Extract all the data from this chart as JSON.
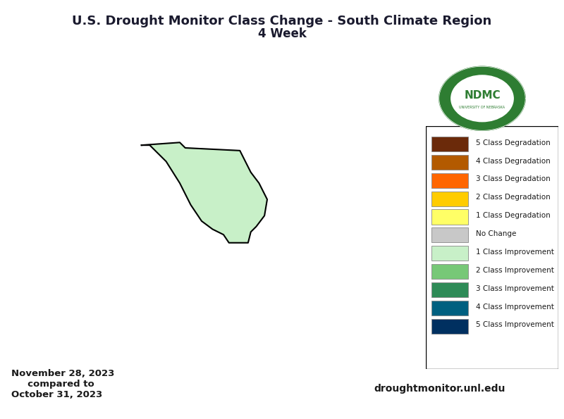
{
  "title_line1": "U.S. Drought Monitor Class Change - South Climate Region",
  "title_line2": "4 Week",
  "date_text": "November 28, 2023\n     compared to\nOctober 31, 2023",
  "website_text": "droughtmonitor.unl.edu",
  "legend_entries": [
    {
      "label": "5 Class Degradation",
      "color": "#6b2a0a"
    },
    {
      "label": "4 Class Degradation",
      "color": "#b35a00"
    },
    {
      "label": "3 Class Degradation",
      "color": "#ff6600"
    },
    {
      "label": "2 Class Degradation",
      "color": "#ffcc00"
    },
    {
      "label": "1 Class Degradation",
      "color": "#ffff66"
    },
    {
      "label": "No Change",
      "color": "#c8c8c8"
    },
    {
      "label": "1 Class Improvement",
      "color": "#c8f0c8"
    },
    {
      "label": "2 Class Improvement",
      "color": "#77c877"
    },
    {
      "label": "3 Class Improvement",
      "color": "#2e8b57"
    },
    {
      "label": "4 Class Improvement",
      "color": "#006080"
    },
    {
      "label": "5 Class Improvement",
      "color": "#003060"
    }
  ],
  "background_color": "#ffffff",
  "map_background": "#ffffff",
  "border_color": "#000000",
  "ndmc_circle_color": "#2e7d32",
  "figsize": [
    8.0,
    5.95
  ],
  "dpi": 100
}
